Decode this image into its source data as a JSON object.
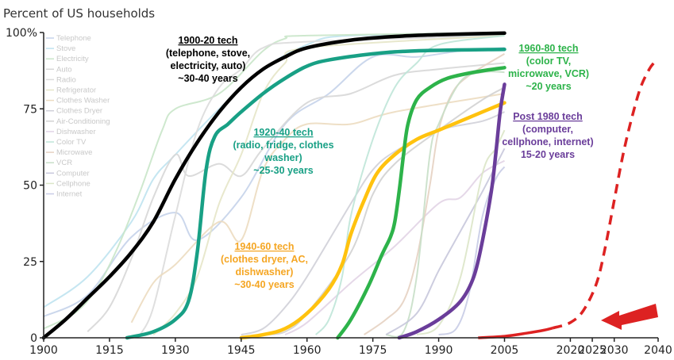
{
  "chart_data": {
    "type": "line",
    "ylabel": "Percent of US households",
    "xlim": [
      1900,
      2040
    ],
    "ylim": [
      0,
      100
    ],
    "x_ticks": [
      "1900",
      "1915",
      "1930",
      "1945",
      "1960",
      "1975",
      "1990",
      "2005",
      "2020",
      "2025",
      "2030",
      "2040"
    ],
    "y_ticks": [
      "100%",
      "75",
      "50",
      "25",
      "0"
    ],
    "y_tick_values": [
      100,
      75,
      50,
      25,
      0
    ],
    "legend_items": [
      "Telephone",
      "Stove",
      "Electricity",
      "Auto",
      "Radio",
      "Refrigerator",
      "Clothes Washer",
      "Clothes Dryer",
      "Air-Conditioning",
      "Dishwasher",
      "Color TV",
      "Microwave",
      "VCR",
      "Computer",
      "Cellphone",
      "Internet"
    ],
    "background_series": [
      {
        "color": "#c5d3ea",
        "points": [
          [
            1900,
            7
          ],
          [
            1910,
            14
          ],
          [
            1920,
            33
          ],
          [
            1930,
            41
          ],
          [
            1935,
            32
          ],
          [
            1945,
            46
          ],
          [
            1955,
            70
          ],
          [
            1965,
            80
          ],
          [
            1975,
            92
          ],
          [
            1985,
            92
          ],
          [
            1995,
            94
          ],
          [
            2005,
            95
          ]
        ]
      },
      {
        "color": "#bfe3ef",
        "points": [
          [
            1900,
            10
          ],
          [
            1910,
            20
          ],
          [
            1920,
            38
          ],
          [
            1925,
            52
          ],
          [
            1930,
            60
          ],
          [
            1940,
            75
          ],
          [
            1950,
            88
          ],
          [
            1960,
            96
          ],
          [
            1970,
            99
          ],
          [
            2005,
            99
          ]
        ]
      },
      {
        "color": "#c9e6c9",
        "points": [
          [
            1900,
            3
          ],
          [
            1907,
            8
          ],
          [
            1912,
            16
          ],
          [
            1917,
            30
          ],
          [
            1922,
            48
          ],
          [
            1927,
            68
          ],
          [
            1930,
            75
          ],
          [
            1940,
            80
          ],
          [
            1950,
            94
          ],
          [
            1955,
            98
          ],
          [
            1960,
            99
          ],
          [
            2005,
            100
          ]
        ]
      },
      {
        "color": "#d7d7d7",
        "points": [
          [
            1910,
            2
          ],
          [
            1915,
            10
          ],
          [
            1920,
            26
          ],
          [
            1925,
            46
          ],
          [
            1930,
            60
          ],
          [
            1933,
            53
          ],
          [
            1940,
            57
          ],
          [
            1945,
            53
          ],
          [
            1950,
            62
          ],
          [
            1960,
            77
          ],
          [
            1970,
            80
          ],
          [
            1980,
            86
          ],
          [
            1990,
            88
          ],
          [
            2005,
            90
          ]
        ]
      },
      {
        "color": "#dcdcdc",
        "points": [
          [
            1922,
            1
          ],
          [
            1925,
            10
          ],
          [
            1930,
            40
          ],
          [
            1935,
            68
          ],
          [
            1940,
            82
          ],
          [
            1945,
            88
          ],
          [
            1950,
            95
          ],
          [
            1960,
            97
          ],
          [
            2005,
            99
          ]
        ]
      },
      {
        "color": "#e6e6c8",
        "points": [
          [
            1925,
            1
          ],
          [
            1930,
            8
          ],
          [
            1935,
            20
          ],
          [
            1940,
            44
          ],
          [
            1945,
            60
          ],
          [
            1950,
            80
          ],
          [
            1955,
            90
          ],
          [
            1960,
            95
          ],
          [
            2005,
            99
          ]
        ]
      },
      {
        "color": "#ecdcc0",
        "points": [
          [
            1920,
            5
          ],
          [
            1925,
            18
          ],
          [
            1930,
            24
          ],
          [
            1940,
            38
          ],
          [
            1945,
            32
          ],
          [
            1950,
            55
          ],
          [
            1955,
            65
          ],
          [
            1960,
            70
          ],
          [
            1970,
            70
          ],
          [
            1980,
            74
          ],
          [
            2005,
            80
          ]
        ]
      },
      {
        "color": "#d0d0d8",
        "points": [
          [
            1945,
            1
          ],
          [
            1950,
            3
          ],
          [
            1955,
            10
          ],
          [
            1960,
            20
          ],
          [
            1970,
            44
          ],
          [
            1975,
            55
          ],
          [
            1980,
            61
          ],
          [
            1990,
            68
          ],
          [
            2000,
            71
          ],
          [
            2005,
            74
          ]
        ]
      },
      {
        "color": "#d2d2d2",
        "points": [
          [
            1950,
            1
          ],
          [
            1955,
            2
          ],
          [
            1960,
            8
          ],
          [
            1970,
            28
          ],
          [
            1975,
            47
          ],
          [
            1980,
            57
          ],
          [
            1990,
            68
          ],
          [
            2000,
            78
          ],
          [
            2005,
            82
          ]
        ]
      },
      {
        "color": "#e2d4e6",
        "points": [
          [
            1955,
            1
          ],
          [
            1960,
            5
          ],
          [
            1970,
            18
          ],
          [
            1980,
            30
          ],
          [
            1990,
            44
          ],
          [
            1995,
            46
          ],
          [
            2000,
            54
          ],
          [
            2005,
            58
          ]
        ]
      },
      {
        "color": "#bfe6d8",
        "points": [
          [
            1962,
            1
          ],
          [
            1965,
            6
          ],
          [
            1968,
            20
          ],
          [
            1970,
            40
          ],
          [
            1975,
            65
          ],
          [
            1980,
            82
          ],
          [
            1985,
            90
          ],
          [
            1990,
            96
          ],
          [
            2005,
            99
          ]
        ]
      },
      {
        "color": "#e6d2c2",
        "points": [
          [
            1973,
            1
          ],
          [
            1978,
            6
          ],
          [
            1982,
            12
          ],
          [
            1985,
            26
          ],
          [
            1988,
            50
          ],
          [
            1990,
            68
          ],
          [
            1993,
            80
          ],
          [
            1997,
            86
          ],
          [
            2005,
            93
          ]
        ]
      },
      {
        "color": "#c8dfc8",
        "points": [
          [
            1978,
            1
          ],
          [
            1982,
            2
          ],
          [
            1985,
            20
          ],
          [
            1988,
            60
          ],
          [
            1990,
            70
          ],
          [
            1995,
            84
          ],
          [
            2000,
            87
          ],
          [
            2005,
            87
          ]
        ]
      },
      {
        "color": "#c8c8dc",
        "points": [
          [
            1978,
            1
          ],
          [
            1985,
            8
          ],
          [
            1990,
            22
          ],
          [
            1995,
            35
          ],
          [
            2000,
            48
          ],
          [
            2005,
            62
          ]
        ]
      },
      {
        "color": "#dce6c8",
        "points": [
          [
            1985,
            1
          ],
          [
            1990,
            4
          ],
          [
            1995,
            20
          ],
          [
            2000,
            54
          ],
          [
            2003,
            62
          ],
          [
            2005,
            68
          ]
        ]
      },
      {
        "color": "#c8cce6",
        "points": [
          [
            1990,
            1
          ],
          [
            1994,
            3
          ],
          [
            1997,
            15
          ],
          [
            2000,
            40
          ],
          [
            2003,
            52
          ],
          [
            2005,
            56
          ]
        ]
      }
    ],
    "series": [
      {
        "color": "#000000",
        "points": [
          [
            1900,
            0
          ],
          [
            1905,
            6
          ],
          [
            1910,
            13
          ],
          [
            1915,
            20
          ],
          [
            1920,
            28
          ],
          [
            1925,
            38
          ],
          [
            1930,
            52
          ],
          [
            1935,
            64
          ],
          [
            1940,
            74
          ],
          [
            1945,
            82
          ],
          [
            1950,
            88
          ],
          [
            1955,
            92
          ],
          [
            1960,
            95
          ],
          [
            1970,
            97.5
          ],
          [
            1980,
            98.7
          ],
          [
            1990,
            99.3
          ],
          [
            2005,
            99.8
          ]
        ]
      },
      {
        "color": "#18a085",
        "points": [
          [
            1919,
            0
          ],
          [
            1925,
            2
          ],
          [
            1930,
            6
          ],
          [
            1933,
            12
          ],
          [
            1935,
            28
          ],
          [
            1937,
            55
          ],
          [
            1939,
            66
          ],
          [
            1942,
            70
          ],
          [
            1945,
            74
          ],
          [
            1950,
            80
          ],
          [
            1955,
            85
          ],
          [
            1960,
            89
          ],
          [
            1965,
            91
          ],
          [
            1975,
            93
          ],
          [
            1985,
            94
          ],
          [
            2005,
            94.5
          ]
        ]
      },
      {
        "color": "#ffc20e",
        "points": [
          [
            1945,
            0
          ],
          [
            1950,
            1
          ],
          [
            1955,
            3
          ],
          [
            1960,
            8
          ],
          [
            1965,
            16
          ],
          [
            1968,
            24
          ],
          [
            1970,
            34
          ],
          [
            1973,
            45
          ],
          [
            1976,
            54
          ],
          [
            1980,
            60
          ],
          [
            1985,
            65
          ],
          [
            1990,
            68
          ],
          [
            1995,
            71
          ],
          [
            2000,
            74
          ],
          [
            2005,
            77
          ]
        ]
      },
      {
        "color": "#2db34a",
        "points": [
          [
            1967,
            0
          ],
          [
            1970,
            6
          ],
          [
            1974,
            17
          ],
          [
            1977,
            27
          ],
          [
            1979,
            33
          ],
          [
            1980,
            38
          ],
          [
            1981,
            48
          ],
          [
            1982,
            60
          ],
          [
            1983,
            70
          ],
          [
            1985,
            78
          ],
          [
            1988,
            82
          ],
          [
            1992,
            85
          ],
          [
            1998,
            87
          ],
          [
            2005,
            88.5
          ]
        ]
      },
      {
        "color": "#6a3d9a",
        "points": [
          [
            1981,
            0
          ],
          [
            1985,
            2
          ],
          [
            1990,
            6
          ],
          [
            1995,
            12
          ],
          [
            1998,
            20
          ],
          [
            2000,
            32
          ],
          [
            2002,
            48
          ],
          [
            2003,
            60
          ],
          [
            2004,
            74
          ],
          [
            2005,
            83
          ]
        ]
      }
    ],
    "projection": {
      "color": "#dd2222",
      "solid": [
        [
          1999,
          0
        ],
        [
          2005,
          0.5
        ],
        [
          2010,
          1.5
        ],
        [
          2014,
          2.5
        ],
        [
          2016,
          3.2
        ]
      ],
      "dashed": [
        [
          2016,
          3.2
        ],
        [
          2020,
          5
        ],
        [
          2023,
          9
        ],
        [
          2026,
          18
        ],
        [
          2028,
          30
        ],
        [
          2030,
          45
        ],
        [
          2032,
          60
        ],
        [
          2034,
          72
        ],
        [
          2036,
          82
        ],
        [
          2038,
          88
        ],
        [
          2039,
          90
        ]
      ]
    }
  },
  "annotations": [
    {
      "id": "tech-1900",
      "color": "#000000",
      "head": "1900-20 tech",
      "lines": [
        "(telephone, stove,",
        "electricity, auto)",
        "~30-40 years"
      ]
    },
    {
      "id": "tech-1920",
      "color": "#18a085",
      "head": "1920-40 tech",
      "lines": [
        "(radio, fridge, clothes",
        "washer)",
        "~25-30 years"
      ]
    },
    {
      "id": "tech-1940",
      "color": "#f5a623",
      "head": "1940-60 tech",
      "lines": [
        "(clothes dryer, AC,",
        "dishwasher)",
        "~30-40 years"
      ]
    },
    {
      "id": "tech-1960",
      "color": "#2db34a",
      "head": "1960-80 tech",
      "lines": [
        "(color TV,",
        "microwave, VCR)",
        "~20 years"
      ]
    },
    {
      "id": "tech-1980",
      "color": "#6a3d9a",
      "head": "Post 1980 tech",
      "lines": [
        "(computer,",
        "cellphone, internet)",
        "15-20 years"
      ]
    }
  ],
  "colors": {
    "arrow": "#dd2222",
    "axis": "#222222",
    "legend_text": "#c8c8c8"
  }
}
